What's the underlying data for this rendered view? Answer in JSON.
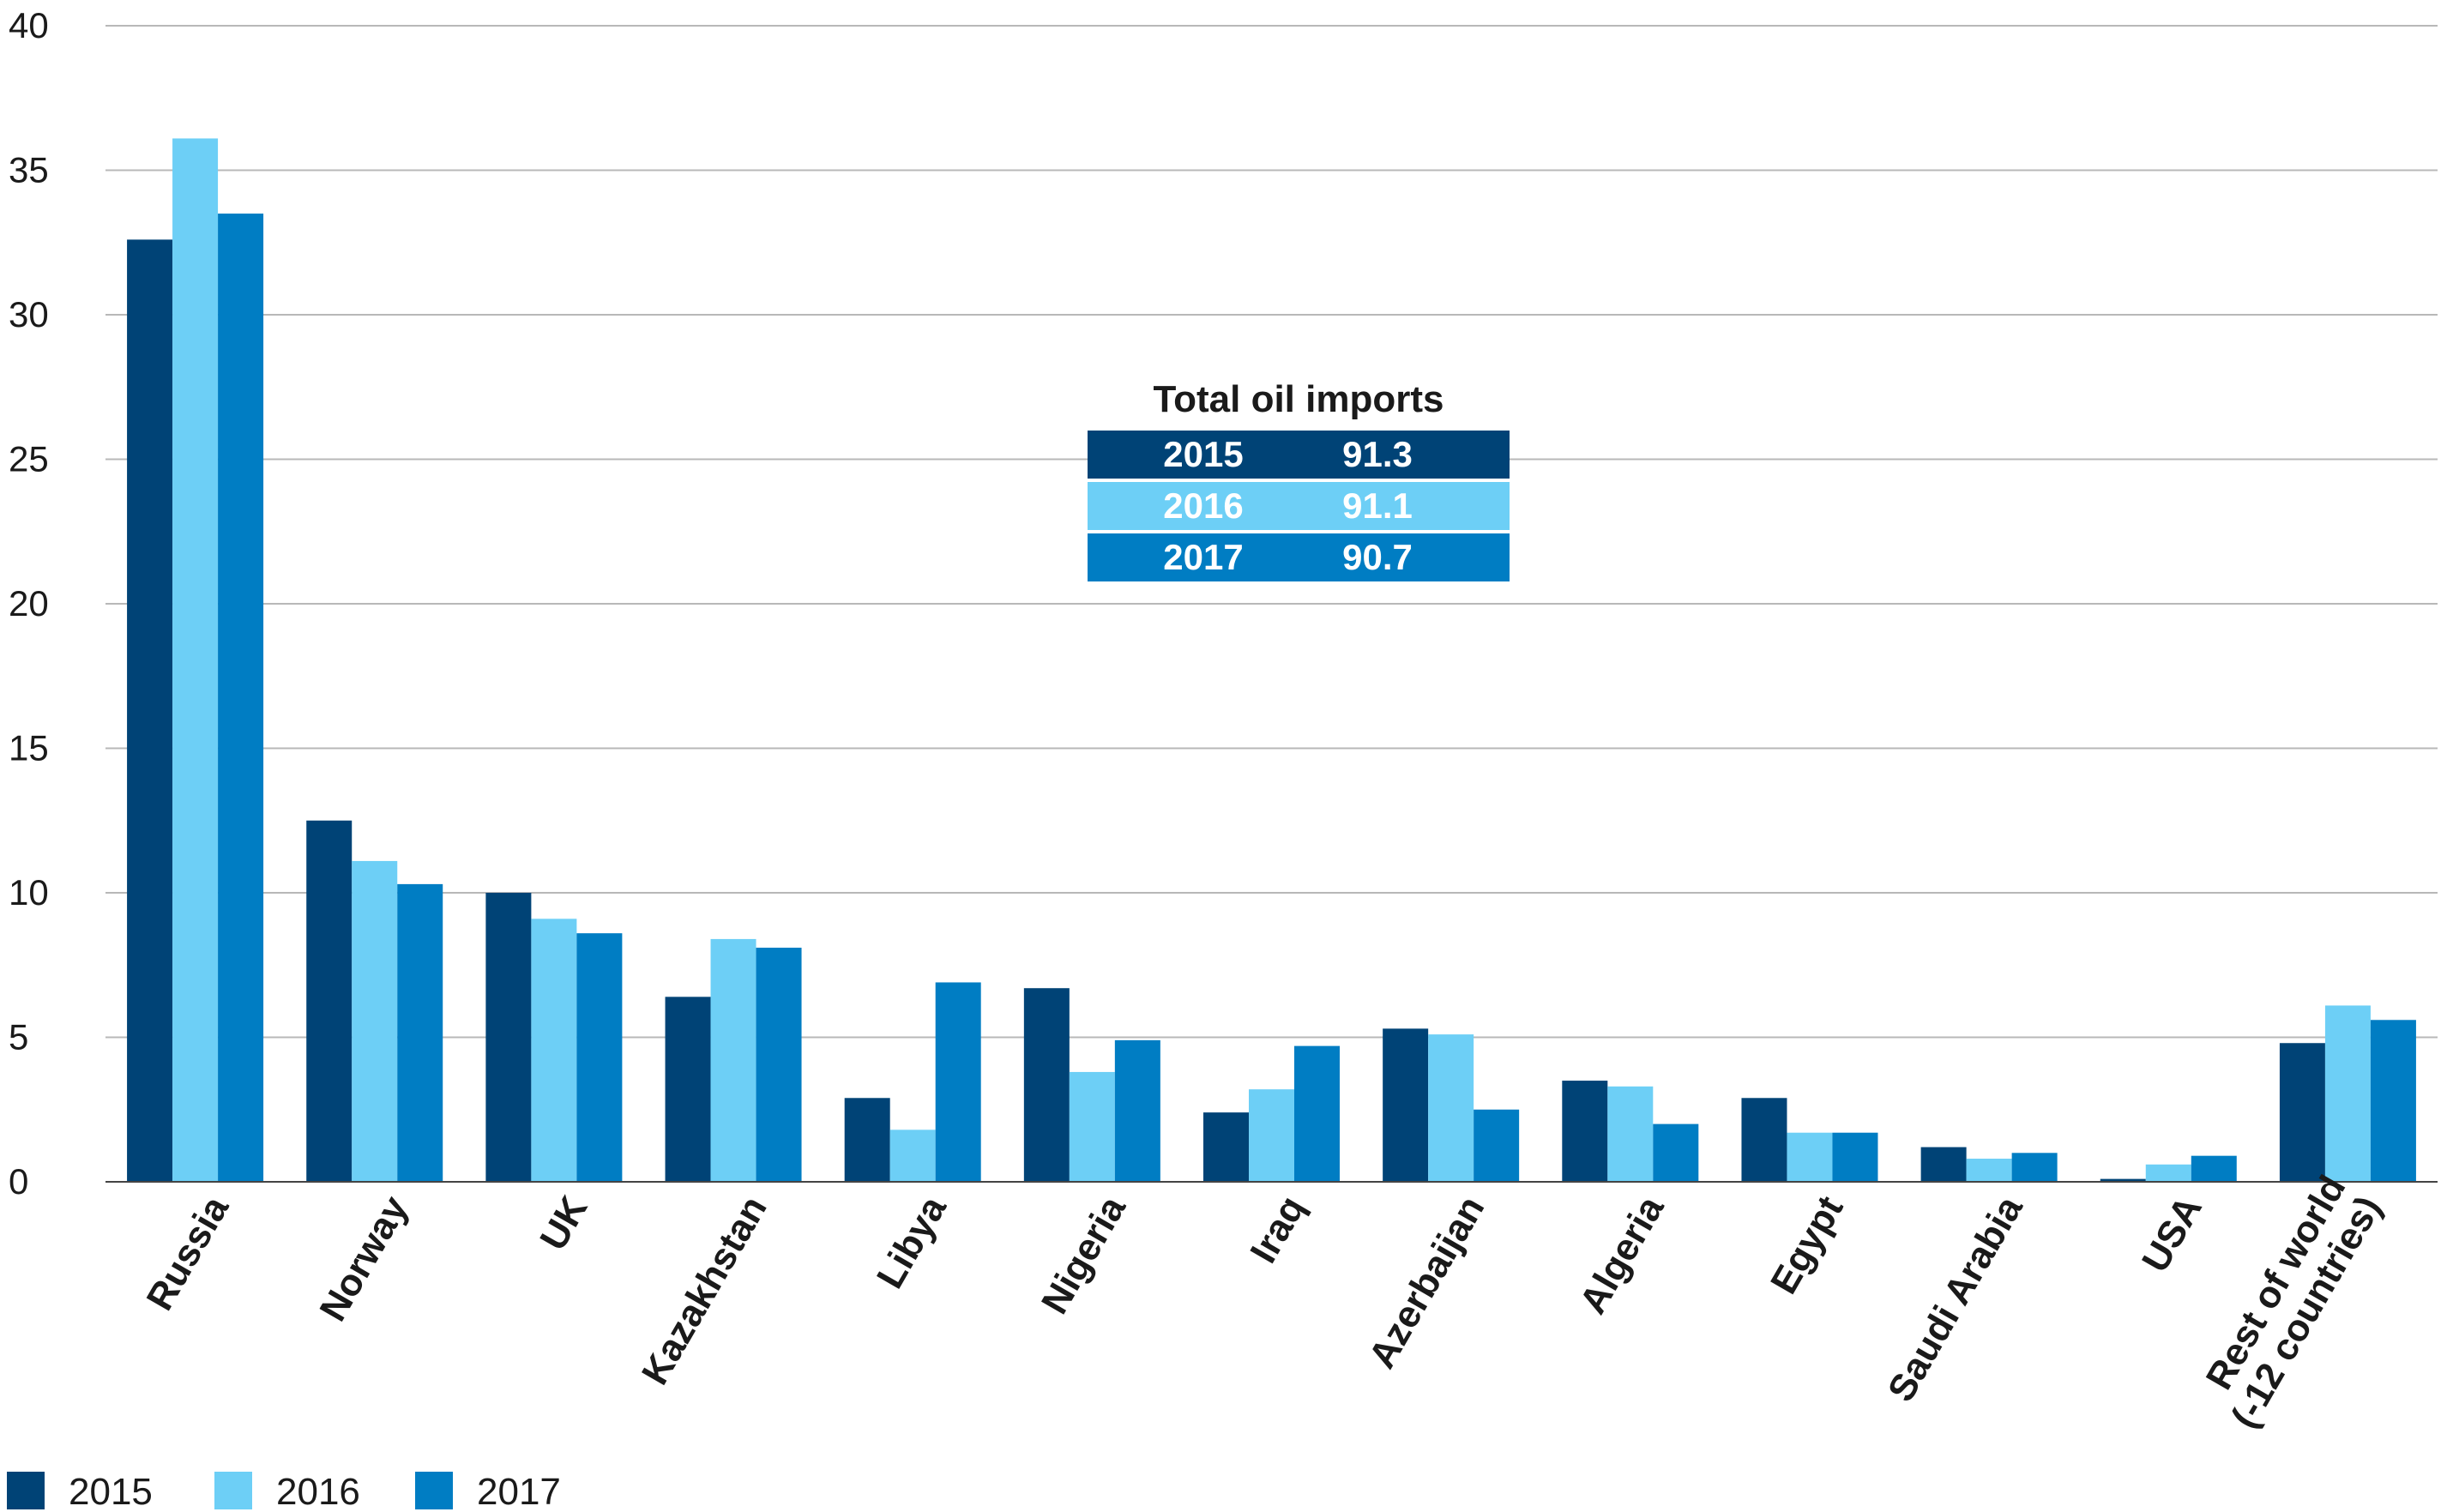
{
  "chart_data": {
    "type": "bar",
    "categories": [
      "Russia",
      "Norway",
      "UK",
      "Kazakhstan",
      "Libya",
      "Nigeria",
      "Iraq",
      "Azerbaijan",
      "Algeria",
      "Egypt",
      "Saudi Arabia",
      "USA",
      "Rest of world (-12 countries)"
    ],
    "category_lines": [
      [
        "Russia"
      ],
      [
        "Norway"
      ],
      [
        "UK"
      ],
      [
        "Kazakhstan"
      ],
      [
        "Libya"
      ],
      [
        "Nigeria"
      ],
      [
        "Iraq"
      ],
      [
        "Azerbaijan"
      ],
      [
        "Algeria"
      ],
      [
        "Egypt"
      ],
      [
        "Saudi Arabia"
      ],
      [
        "USA"
      ],
      [
        "Rest of world",
        "(-12 countries)"
      ]
    ],
    "series": [
      {
        "name": "2015",
        "color": "#004376",
        "values": [
          32.6,
          12.5,
          10.0,
          6.4,
          2.9,
          6.7,
          2.4,
          5.3,
          3.5,
          2.9,
          1.2,
          0.1,
          4.8
        ]
      },
      {
        "name": "2016",
        "color": "#6dcff6",
        "values": [
          36.1,
          11.1,
          9.1,
          8.4,
          1.8,
          3.8,
          3.2,
          5.1,
          3.3,
          1.7,
          0.8,
          0.6,
          6.1
        ]
      },
      {
        "name": "2017",
        "color": "#007dc3",
        "values": [
          33.5,
          10.3,
          8.6,
          8.1,
          6.9,
          4.9,
          4.7,
          2.5,
          2.0,
          1.7,
          1.0,
          0.9,
          5.6
        ]
      }
    ],
    "ylim": [
      0,
      40
    ],
    "yticks": [
      0,
      5,
      10,
      15,
      20,
      25,
      30,
      35,
      40
    ],
    "grid": true,
    "legend_position": "bottom-left",
    "inset_table": {
      "title": "Total oil imports",
      "rows": [
        {
          "year": "2015",
          "value": "91.3",
          "color": "#004376"
        },
        {
          "year": "2016",
          "value": "91.1",
          "color": "#6dcff6"
        },
        {
          "year": "2017",
          "value": "90.7",
          "color": "#007dc3"
        }
      ]
    }
  }
}
